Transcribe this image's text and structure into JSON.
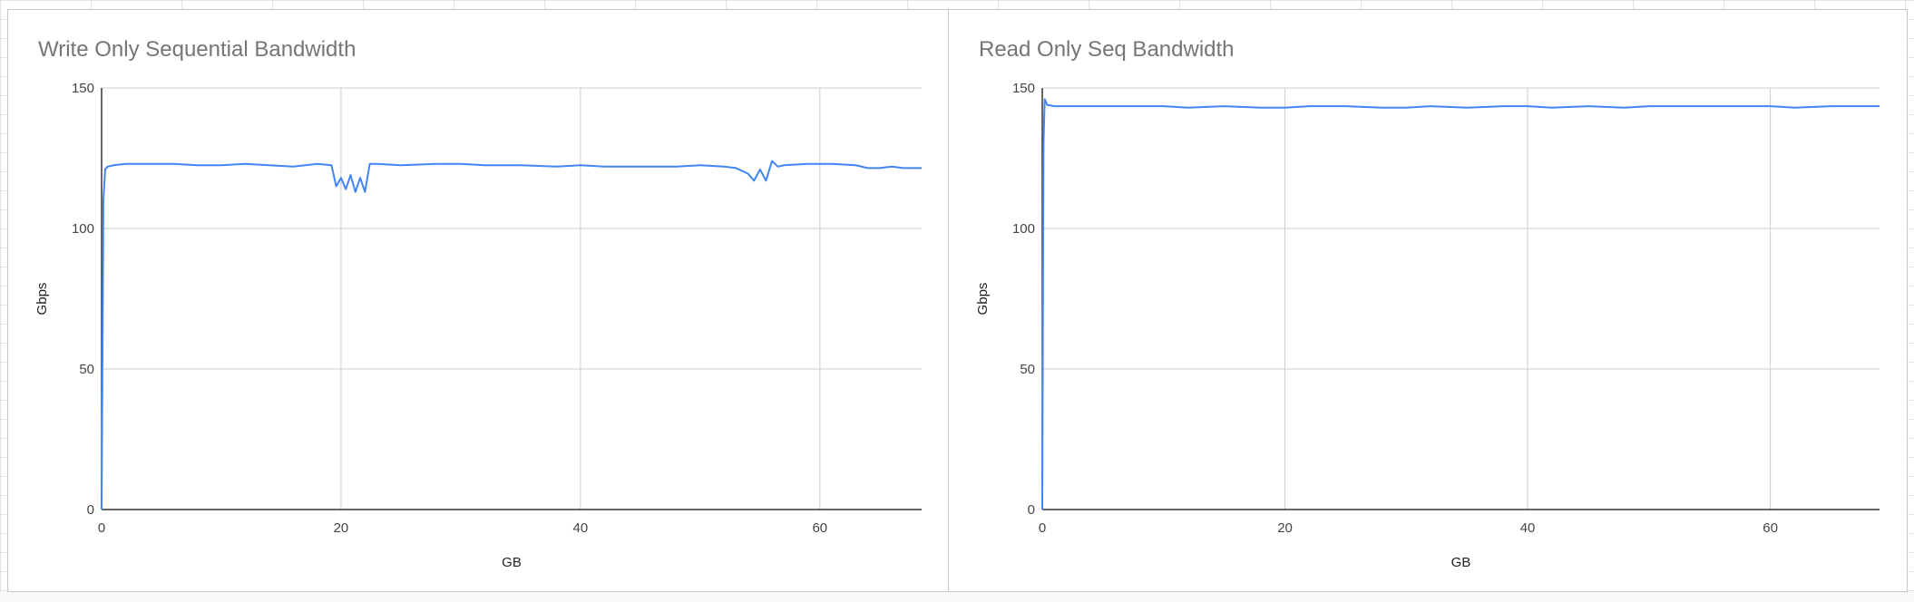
{
  "chart_data": [
    {
      "type": "line",
      "title": "Write Only Sequential Bandwidth",
      "xlabel": "GB",
      "ylabel": "Gbps",
      "xlim": [
        0,
        68.5
      ],
      "ylim": [
        0,
        150
      ],
      "xticks": [
        0,
        20,
        40,
        60
      ],
      "yticks": [
        0,
        50,
        100,
        150
      ],
      "grid": true,
      "legend": "none",
      "series_color": "#4285f4",
      "series": [
        {
          "x": [
            0,
            0.15,
            0.3,
            0.5,
            1,
            2,
            4,
            6,
            8,
            10,
            12,
            14,
            16,
            17,
            18,
            19.2,
            19.6,
            20,
            20.4,
            20.8,
            21.2,
            21.6,
            22,
            22.4,
            23,
            25,
            28,
            30,
            32,
            35,
            38,
            40,
            42,
            45,
            48,
            50,
            52,
            53,
            54,
            54.5,
            55,
            55.5,
            56,
            56.5,
            57,
            59,
            61,
            63,
            64,
            65,
            66,
            67,
            68.5
          ],
          "y": [
            0,
            110,
            121,
            122,
            122.5,
            123,
            123,
            123,
            122.5,
            122.5,
            123,
            122.5,
            122,
            122.5,
            123,
            122.5,
            115,
            118,
            114,
            119,
            113,
            118,
            113,
            123,
            123,
            122.5,
            123,
            123,
            122.5,
            122.5,
            122,
            122.5,
            122,
            122,
            122,
            122.5,
            122,
            121.5,
            119.5,
            117,
            121,
            117,
            124,
            122,
            122.5,
            123,
            123,
            122.5,
            121.5,
            121.5,
            122,
            121.5,
            121.5
          ]
        }
      ]
    },
    {
      "type": "line",
      "title": "Read Only Seq Bandwidth",
      "xlabel": "GB",
      "ylabel": "Gbps",
      "xlim": [
        0,
        69
      ],
      "ylim": [
        0,
        150
      ],
      "xticks": [
        0,
        20,
        40,
        60
      ],
      "yticks": [
        0,
        50,
        100,
        150
      ],
      "grid": true,
      "legend": "none",
      "series_color": "#4285f4",
      "series": [
        {
          "x": [
            0,
            0.1,
            0.2,
            0.4,
            1,
            3,
            5,
            8,
            10,
            12,
            15,
            18,
            20,
            22,
            25,
            28,
            30,
            32,
            35,
            38,
            40,
            42,
            45,
            48,
            50,
            52,
            55,
            58,
            60,
            62,
            65,
            67,
            69
          ],
          "y": [
            0,
            130,
            146,
            144,
            143.5,
            143.5,
            143.5,
            143.5,
            143.5,
            143,
            143.5,
            143,
            143,
            143.5,
            143.5,
            143,
            143,
            143.5,
            143,
            143.5,
            143.5,
            143,
            143.5,
            143,
            143.5,
            143.5,
            143.5,
            143.5,
            143.5,
            143,
            143.5,
            143.5,
            143.5
          ]
        }
      ]
    }
  ]
}
